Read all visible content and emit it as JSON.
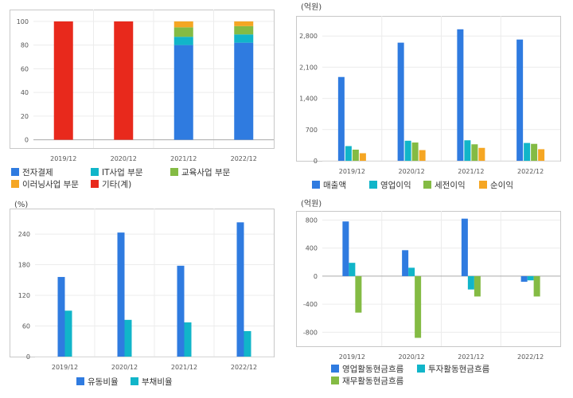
{
  "chart_data": [
    {
      "type": "bar",
      "stacked": true,
      "categories": [
        "2019/12",
        "2020/12",
        "2021/12",
        "2022/12"
      ],
      "series": [
        {
          "name": "전자결제",
          "color": "#2f7be0",
          "values": [
            0,
            0,
            80,
            82
          ]
        },
        {
          "name": "IT사업 부문",
          "color": "#11b5c9",
          "values": [
            0,
            0,
            7,
            7
          ]
        },
        {
          "name": "교육사업 부문",
          "color": "#84bb44",
          "values": [
            0,
            0,
            8,
            7
          ]
        },
        {
          "name": "이러닝사업 부문",
          "color": "#f5a623",
          "values": [
            0,
            0,
            5,
            4
          ]
        },
        {
          "name": "기타(계)",
          "color": "#e8291c",
          "values": [
            100,
            100,
            0,
            0
          ]
        }
      ],
      "yticks": [
        0,
        20,
        40,
        60,
        80,
        100
      ],
      "ylim": [
        -7,
        110
      ],
      "unit_label": ""
    },
    {
      "type": "bar",
      "categories": [
        "2019/12",
        "2020/12",
        "2021/12",
        "2022/12"
      ],
      "series": [
        {
          "name": "매출액",
          "color": "#2f7be0",
          "values": [
            1880,
            2650,
            2950,
            2720
          ]
        },
        {
          "name": "영업이익",
          "color": "#11b5c9",
          "values": [
            330,
            450,
            460,
            400
          ]
        },
        {
          "name": "세전이익",
          "color": "#84bb44",
          "values": [
            250,
            410,
            370,
            380
          ]
        },
        {
          "name": "순이익",
          "color": "#f5a623",
          "values": [
            170,
            240,
            290,
            260
          ]
        }
      ],
      "yticks": [
        0,
        700,
        1400,
        2100,
        2800
      ],
      "ytick_labels": [
        "0",
        "700",
        "1,400",
        "2,100",
        "2,800"
      ],
      "ylim": [
        0,
        3250
      ],
      "unit_label": "(억원)"
    },
    {
      "type": "bar",
      "categories": [
        "2019/12",
        "2020/12",
        "2021/12",
        "2022/12"
      ],
      "series": [
        {
          "name": "유동비율",
          "color": "#2f7be0",
          "values": [
            156,
            243,
            178,
            263
          ]
        },
        {
          "name": "부채비율",
          "color": "#11b5c9",
          "values": [
            90,
            72,
            67,
            50
          ]
        }
      ],
      "yticks": [
        0,
        60,
        120,
        180,
        240
      ],
      "ylim": [
        0,
        290
      ],
      "unit_label": "(%)"
    },
    {
      "type": "bar",
      "categories": [
        "2019/12",
        "2020/12",
        "2021/12",
        "2022/12"
      ],
      "series": [
        {
          "name": "영업활동현금흐름",
          "color": "#2f7be0",
          "values": [
            780,
            370,
            820,
            -80
          ]
        },
        {
          "name": "투자활동현금흐름",
          "color": "#11b5c9",
          "values": [
            190,
            120,
            -190,
            -60
          ]
        },
        {
          "name": "재무활동현금흐름",
          "color": "#84bb44",
          "values": [
            -520,
            -880,
            -290,
            -290
          ]
        }
      ],
      "yticks": [
        -800,
        -400,
        0,
        400,
        800
      ],
      "ylim": [
        -1000,
        930
      ],
      "unit_label": "(억원)"
    }
  ]
}
